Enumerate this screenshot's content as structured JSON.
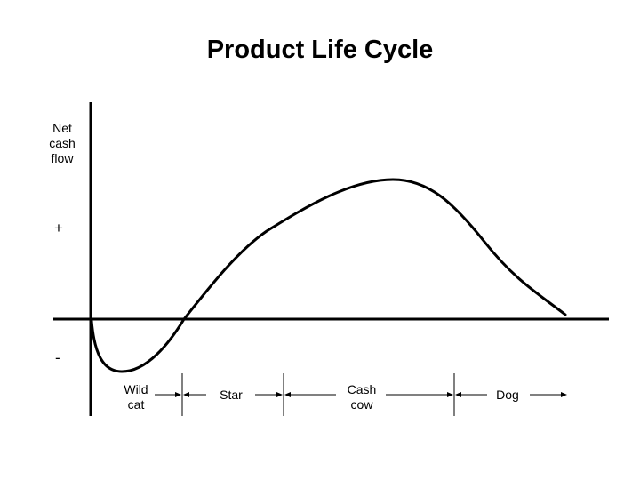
{
  "diagram": {
    "title": "Product Life Cycle",
    "y_axis_label": [
      "Net",
      "cash",
      "flow"
    ],
    "positive_sign": "+",
    "negative_sign": "-",
    "stages": [
      {
        "label": [
          "Wild",
          "cat"
        ]
      },
      {
        "label": [
          "Star"
        ]
      },
      {
        "label": [
          "Cash",
          "cow"
        ]
      },
      {
        "label": [
          "Dog"
        ]
      }
    ],
    "colors": {
      "ink": "#000000",
      "background": "#ffffff"
    }
  }
}
